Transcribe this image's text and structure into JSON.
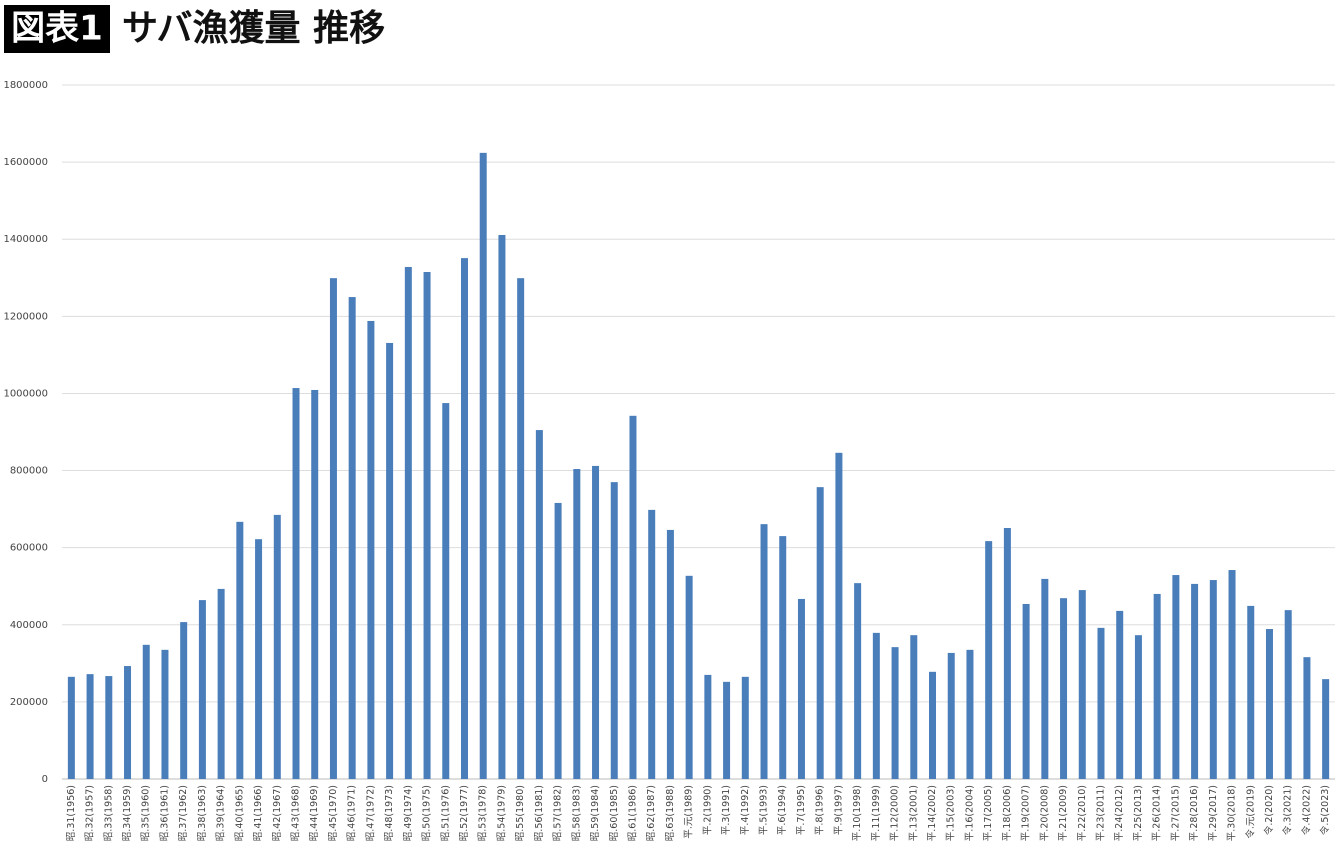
{
  "chart_data": {
    "type": "bar",
    "badge": "図表1",
    "title": "サバ漁獲量 推移",
    "categories": [
      "昭.31(1956)",
      "昭.32(1957)",
      "昭.33(1958)",
      "昭.34(1959)",
      "昭.35(1960)",
      "昭.36(1961)",
      "昭.37(1962)",
      "昭.38(1963)",
      "昭.39(1964)",
      "昭.40(1965)",
      "昭.41(1966)",
      "昭.42(1967)",
      "昭.43(1968)",
      "昭.44(1969)",
      "昭.45(1970)",
      "昭.46(1971)",
      "昭.47(1972)",
      "昭.48(1973)",
      "昭.49(1974)",
      "昭.50(1975)",
      "昭.51(1976)",
      "昭.52(1977)",
      "昭.53(1978)",
      "昭.54(1979)",
      "昭.55(1980)",
      "昭.56(1981)",
      "昭.57(1982)",
      "昭.58(1983)",
      "昭.59(1984)",
      "昭.60(1985)",
      "昭.61(1986)",
      "昭.62(1987)",
      "昭.63(1988)",
      "平.元(1989)",
      "平.2(1990)",
      "平.3(1991)",
      "平.4(1992)",
      "平.5(1993)",
      "平.6(1994)",
      "平.7(1995)",
      "平.8(1996)",
      "平.9(1997)",
      "平.10(1998)",
      "平.11(1999)",
      "平.12(2000)",
      "平.13(2001)",
      "平.14(2002)",
      "平.15(2003)",
      "平.16(2004)",
      "平.17(2005)",
      "平.18(2006)",
      "平.19(2007)",
      "平.20(2008)",
      "平.21(2009)",
      "平.22(2010)",
      "平.23(2011)",
      "平.24(2012)",
      "平.25(2013)",
      "平.26(2014)",
      "平.27(2015)",
      "平.28(2016)",
      "平.29(2017)",
      "平.30(2018)",
      "令.元(2019)",
      "令.2(2020)",
      "令.3(2021)",
      "令.4(2022)",
      "令.5(2023)"
    ],
    "values": [
      265000,
      272000,
      267000,
      293000,
      348000,
      335000,
      407000,
      464000,
      493000,
      667000,
      622000,
      685000,
      1014000,
      1009000,
      1299000,
      1250000,
      1188000,
      1131000,
      1328000,
      1315000,
      975000,
      1351000,
      1624000,
      1411000,
      1299000,
      905000,
      716000,
      804000,
      812000,
      770000,
      942000,
      698000,
      646000,
      527000,
      270000,
      252000,
      265000,
      661000,
      630000,
      467000,
      757000,
      846000,
      508000,
      379000,
      342000,
      373000,
      278000,
      327000,
      335000,
      617000,
      651000,
      454000,
      519000,
      469000,
      490000,
      392000,
      436000,
      373000,
      480000,
      529000,
      506000,
      516000,
      542000,
      449000,
      389000,
      438000,
      316000,
      259000
    ],
    "color": "#4a7ebb",
    "ylim": [
      0,
      1800000
    ],
    "yticks": [
      0,
      200000,
      400000,
      600000,
      800000,
      1000000,
      1200000,
      1400000,
      1600000,
      1800000
    ],
    "grid": true
  }
}
